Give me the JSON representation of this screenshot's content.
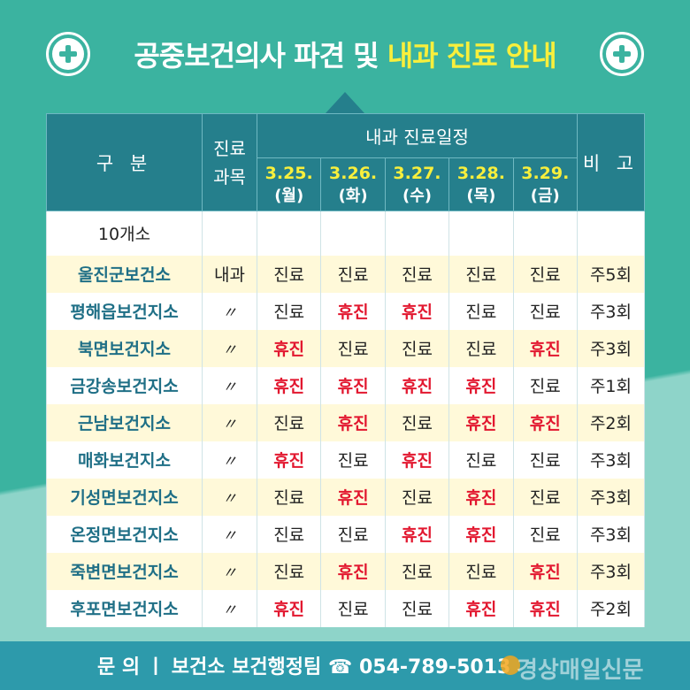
{
  "title": {
    "part1": "공중보건의사 파견 및 ",
    "part2": "내과 진료 안내"
  },
  "table": {
    "col_name": "구 분",
    "col_subject": "진료\n과목",
    "col_schedule": "내과 진료일정",
    "col_note": "비 고",
    "days": [
      {
        "date": "3.25.",
        "weekday": "(월)"
      },
      {
        "date": "3.26.",
        "weekday": "(화)"
      },
      {
        "date": "3.27.",
        "weekday": "(수)"
      },
      {
        "date": "3.28.",
        "weekday": "(목)"
      },
      {
        "date": "3.29.",
        "weekday": "(금)"
      }
    ],
    "summary": "10개소",
    "rows": [
      {
        "name": "울진군보건소",
        "subject": "내과",
        "days": [
          "진료",
          "진료",
          "진료",
          "진료",
          "진료"
        ],
        "note": "주5회"
      },
      {
        "name": "평해읍보건지소",
        "subject": "〃",
        "days": [
          "진료",
          "휴진",
          "휴진",
          "진료",
          "진료"
        ],
        "note": "주3회"
      },
      {
        "name": "북면보건지소",
        "subject": "〃",
        "days": [
          "휴진",
          "진료",
          "진료",
          "진료",
          "휴진"
        ],
        "note": "주3회"
      },
      {
        "name": "금강송보건지소",
        "subject": "〃",
        "days": [
          "휴진",
          "휴진",
          "휴진",
          "휴진",
          "진료"
        ],
        "note": "주1회"
      },
      {
        "name": "근남보건지소",
        "subject": "〃",
        "days": [
          "진료",
          "휴진",
          "진료",
          "휴진",
          "휴진"
        ],
        "note": "주2회"
      },
      {
        "name": "매화보건지소",
        "subject": "〃",
        "days": [
          "휴진",
          "진료",
          "휴진",
          "진료",
          "진료"
        ],
        "note": "주3회"
      },
      {
        "name": "기성면보건지소",
        "subject": "〃",
        "days": [
          "진료",
          "휴진",
          "진료",
          "휴진",
          "진료"
        ],
        "note": "주3회"
      },
      {
        "name": "온정면보건지소",
        "subject": "〃",
        "days": [
          "진료",
          "진료",
          "휴진",
          "휴진",
          "진료"
        ],
        "note": "주3회"
      },
      {
        "name": "죽변면보건지소",
        "subject": "〃",
        "days": [
          "진료",
          "휴진",
          "진료",
          "진료",
          "휴진"
        ],
        "note": "주3회"
      },
      {
        "name": "후포면보건지소",
        "subject": "〃",
        "days": [
          "휴진",
          "진료",
          "진료",
          "휴진",
          "휴진"
        ],
        "note": "주2회"
      }
    ]
  },
  "footer": {
    "text": "문   의 ㅣ 보건소 보건행정팀 ☎ 054-789-5013"
  },
  "watermark": "경상매일신문",
  "colors": {
    "teal": "#3bb3a0",
    "header": "#257f8c",
    "accent_yellow": "#f8ef3c",
    "off_red": "#e2172f",
    "name_blue": "#1f6f86"
  }
}
